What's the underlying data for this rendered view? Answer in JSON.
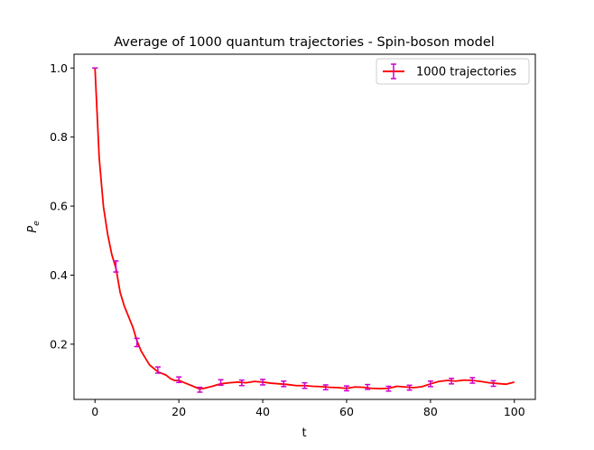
{
  "chart_data": {
    "type": "line",
    "title": "Average of 1000 quantum trajectories - Spin-boson model",
    "xlabel": "t",
    "ylabel": "P_e",
    "xlim": [
      -5,
      105
    ],
    "ylim": [
      0.04,
      1.04
    ],
    "xticks": [
      0,
      20,
      40,
      60,
      80,
      100
    ],
    "yticks": [
      0.2,
      0.4,
      0.6,
      0.8,
      1.0
    ],
    "xtick_labels": [
      "0",
      "20",
      "40",
      "60",
      "80",
      "100"
    ],
    "ytick_labels": [
      "0.2",
      "0.4",
      "0.6",
      "0.8",
      "1.0"
    ],
    "grid": false,
    "legend": {
      "placement": "top-right",
      "entries": [
        "1000 trajectories"
      ]
    },
    "series": [
      {
        "name": "1000 trajectories",
        "color": "#ff0000",
        "errorbar_color": "#cc00cc",
        "x": [
          0,
          1,
          2,
          3,
          4,
          5,
          6,
          7,
          8,
          9,
          10,
          11,
          12,
          13,
          14,
          15,
          16,
          17,
          18,
          19,
          20,
          21,
          22,
          23,
          24,
          25,
          26,
          27,
          28,
          29,
          30,
          32,
          34,
          36,
          38,
          40,
          42,
          44,
          46,
          48,
          50,
          52,
          54,
          56,
          58,
          60,
          62,
          64,
          66,
          68,
          70,
          72,
          74,
          76,
          78,
          80,
          82,
          84,
          86,
          88,
          90,
          92,
          94,
          96,
          98,
          100
        ],
        "y": [
          1.0,
          0.74,
          0.6,
          0.52,
          0.46,
          0.42,
          0.35,
          0.31,
          0.28,
          0.25,
          0.21,
          0.18,
          0.16,
          0.14,
          0.13,
          0.12,
          0.115,
          0.11,
          0.1,
          0.095,
          0.095,
          0.09,
          0.085,
          0.08,
          0.075,
          0.07,
          0.072,
          0.075,
          0.078,
          0.082,
          0.085,
          0.088,
          0.09,
          0.088,
          0.092,
          0.09,
          0.087,
          0.085,
          0.083,
          0.08,
          0.08,
          0.078,
          0.077,
          0.075,
          0.074,
          0.072,
          0.076,
          0.075,
          0.072,
          0.071,
          0.072,
          0.078,
          0.076,
          0.074,
          0.077,
          0.085,
          0.092,
          0.095,
          0.093,
          0.096,
          0.095,
          0.092,
          0.088,
          0.086,
          0.084,
          0.09
        ],
        "errorbars": {
          "x": [
            0,
            5,
            10,
            15,
            20,
            25,
            30,
            35,
            40,
            45,
            50,
            55,
            60,
            65,
            70,
            75,
            80,
            85,
            90,
            95
          ],
          "y": [
            1.0,
            0.425,
            0.205,
            0.125,
            0.097,
            0.068,
            0.089,
            0.088,
            0.09,
            0.085,
            0.08,
            0.075,
            0.072,
            0.076,
            0.071,
            0.074,
            0.085,
            0.093,
            0.095,
            0.086
          ],
          "err": [
            0.0,
            0.016,
            0.012,
            0.009,
            0.008,
            0.007,
            0.008,
            0.008,
            0.008,
            0.008,
            0.008,
            0.007,
            0.007,
            0.007,
            0.007,
            0.007,
            0.008,
            0.008,
            0.008,
            0.008
          ]
        }
      }
    ]
  }
}
